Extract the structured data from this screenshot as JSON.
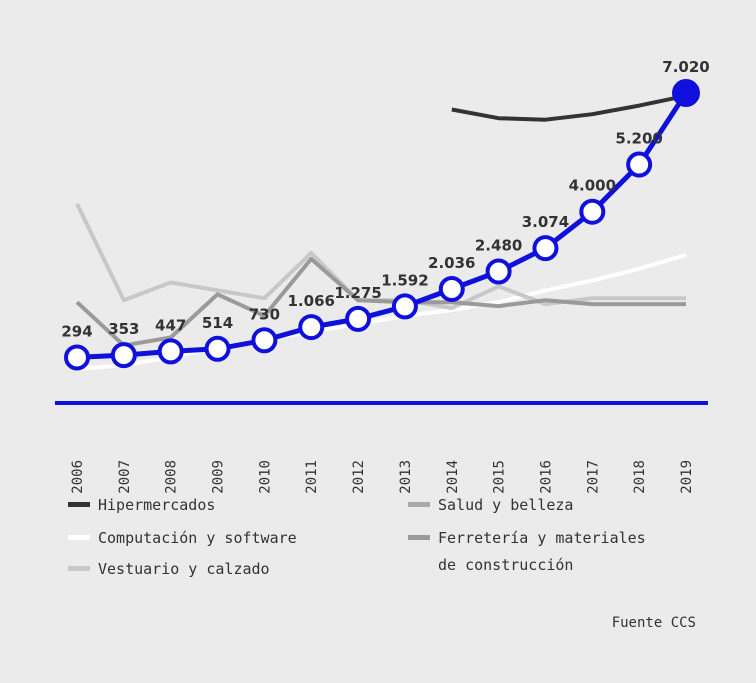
{
  "chart_data": {
    "type": "line",
    "x": [
      "2006",
      "2007",
      "2008",
      "2009",
      "2010",
      "2011",
      "2012",
      "2013",
      "2014",
      "2015",
      "2016",
      "2017",
      "2018",
      "2019"
    ],
    "highlight_series": {
      "values": [
        294,
        353,
        447,
        514,
        730,
        1066,
        1275,
        1592,
        2036,
        2480,
        3074,
        4000,
        5200,
        7020
      ],
      "labels": [
        "294",
        "353",
        "447",
        "514",
        "730",
        "1.066",
        "1.275",
        "1.592",
        "2.036",
        "2.480",
        "3.074",
        "4.000",
        "5.200",
        "7.020"
      ],
      "color": "#1010dd"
    },
    "ylim": [
      0,
      7020
    ],
    "series": [
      {
        "name": "Hipermercados",
        "color": "#333333",
        "values": [
          null,
          null,
          null,
          null,
          null,
          null,
          null,
          null,
          6600,
          6380,
          6340,
          6480,
          6700,
          6950
        ]
      },
      {
        "name": "Computación y software",
        "color": "#ffffff",
        "values": [
          0,
          100,
          300,
          550,
          750,
          950,
          1150,
          1350,
          1500,
          1700,
          2000,
          2250,
          2550,
          2900
        ]
      },
      {
        "name": "Vestuario y calzado",
        "color": "#c8c8c8",
        "values": [
          4200,
          1750,
          2200,
          2000,
          1800,
          2950,
          1750,
          1750,
          1550,
          2100,
          1650,
          1800,
          1800,
          1800
        ]
      },
      {
        "name": "Salud y belleza",
        "color": "#aaaaaa",
        "values": [
          null,
          null,
          null,
          null,
          null,
          null,
          null,
          null,
          null,
          null,
          null,
          null,
          null,
          null
        ]
      },
      {
        "name": "Ferretería y materiales de construcción",
        "color": "#9a9a9a",
        "values": [
          1700,
          600,
          800,
          1900,
          1350,
          2800,
          1750,
          1700,
          1700,
          1600,
          1750,
          1650,
          1650,
          1650
        ]
      }
    ],
    "legend": {
      "left": [
        "Hipermercados",
        "Computación y software",
        "Vestuario y calzado"
      ],
      "right": [
        "Salud y belleza",
        "Ferretería y materiales",
        "de construcción"
      ]
    },
    "title": "",
    "xlabel": "",
    "ylabel": "",
    "grid": false
  },
  "source": "Fuente CCS"
}
